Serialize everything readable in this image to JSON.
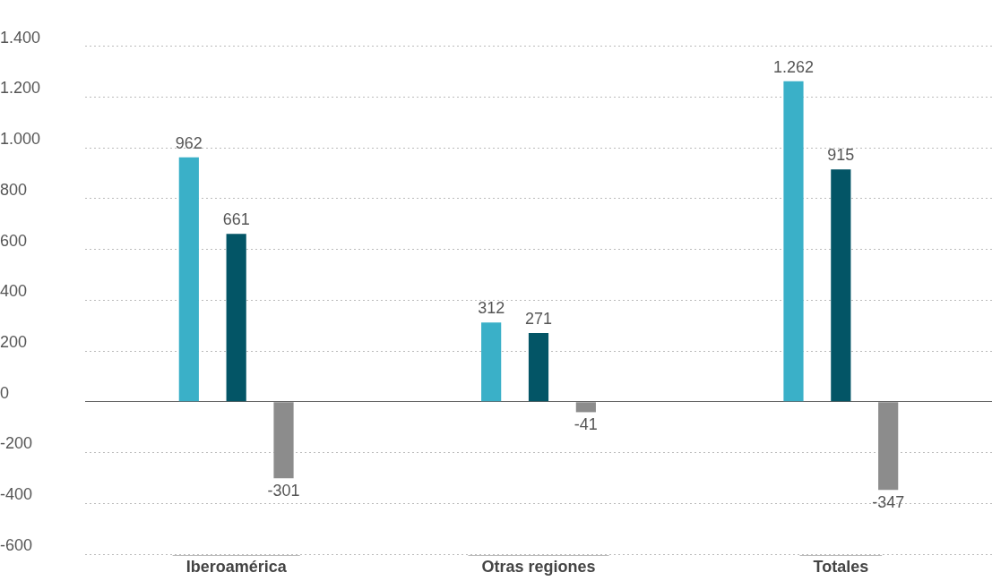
{
  "chart_data": {
    "type": "bar",
    "categories": [
      "Iberoamérica",
      "Otras regiones",
      "Totales"
    ],
    "series": [
      {
        "color": "#3ab0c8",
        "values": [
          962,
          312,
          1262
        ],
        "value_labels": [
          "962",
          "312",
          "1.262"
        ]
      },
      {
        "color": "#035566",
        "values": [
          661,
          271,
          915
        ],
        "value_labels": [
          "661",
          "271",
          "915"
        ]
      },
      {
        "color": "#8c8c8c",
        "values": [
          -301,
          -41,
          -347
        ],
        "value_labels": [
          "-301",
          "-41",
          "-347"
        ]
      }
    ],
    "ylim": [
      -600,
      1400
    ],
    "yticks": [
      {
        "value": -600,
        "label": "-600"
      },
      {
        "value": -400,
        "label": "-400"
      },
      {
        "value": -200,
        "label": "-200"
      },
      {
        "value": 0,
        "label": "0"
      },
      {
        "value": 200,
        "label": "200"
      },
      {
        "value": 400,
        "label": "400"
      },
      {
        "value": 600,
        "label": "600"
      },
      {
        "value": 800,
        "label": "800"
      },
      {
        "value": 1000,
        "label": "1.000"
      },
      {
        "value": 1200,
        "label": "1.200"
      },
      {
        "value": 1400,
        "label": "1.400"
      }
    ],
    "grid": "y",
    "legend": false
  }
}
